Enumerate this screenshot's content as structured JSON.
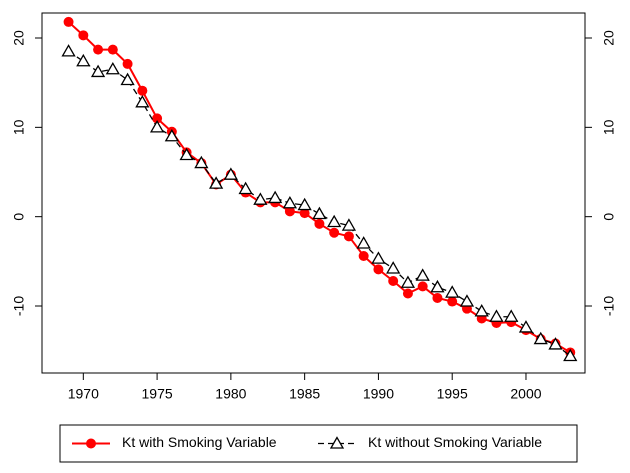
{
  "chart_data": {
    "type": "line",
    "x": [
      1969,
      1970,
      1971,
      1972,
      1973,
      1974,
      1975,
      1976,
      1977,
      1978,
      1979,
      1980,
      1981,
      1982,
      1983,
      1984,
      1985,
      1986,
      1987,
      1988,
      1989,
      1990,
      1991,
      1992,
      1993,
      1994,
      1995,
      1996,
      1997,
      1998,
      1999,
      2000,
      2001,
      2002,
      2003
    ],
    "series": [
      {
        "name": "Kt with Smoking Variable",
        "color": "#ff0000",
        "marker": "circle",
        "dashed": false,
        "values": [
          21.8,
          20.3,
          18.7,
          18.7,
          17.1,
          14.1,
          11.0,
          9.5,
          7.2,
          6.0,
          3.6,
          4.7,
          2.7,
          1.6,
          1.6,
          0.6,
          0.4,
          -0.8,
          -1.8,
          -2.2,
          -4.4,
          -5.9,
          -7.2,
          -8.6,
          -7.8,
          -9.1,
          -9.5,
          -10.3,
          -11.4,
          -11.9,
          -11.8,
          -12.7,
          -13.7,
          -14.2,
          -15.2
        ]
      },
      {
        "name": "Kt without Smoking Variable",
        "color": "#000000",
        "marker": "triangle",
        "dashed": true,
        "values": [
          18.5,
          17.4,
          16.2,
          16.5,
          15.3,
          12.8,
          10.0,
          9.0,
          6.9,
          6.0,
          3.7,
          4.7,
          3.1,
          1.9,
          2.1,
          1.5,
          1.3,
          0.3,
          -0.6,
          -1.0,
          -3.0,
          -4.7,
          -5.8,
          -7.4,
          -6.6,
          -7.9,
          -8.5,
          -9.5,
          -10.6,
          -11.2,
          -11.2,
          -12.4,
          -13.7,
          -14.3,
          -15.6
        ]
      }
    ],
    "xlim": [
      1967.2,
      2004
    ],
    "xticks": [
      1970,
      1975,
      1980,
      1985,
      1990,
      1995,
      2000
    ],
    "ylim": [
      -17.5,
      22.8
    ],
    "yticks": [
      -10,
      0,
      10,
      20
    ],
    "y2lim": [
      -17.5,
      22.8
    ],
    "y2ticks": [
      -10,
      0,
      10,
      20
    ],
    "legend": "bottom"
  }
}
